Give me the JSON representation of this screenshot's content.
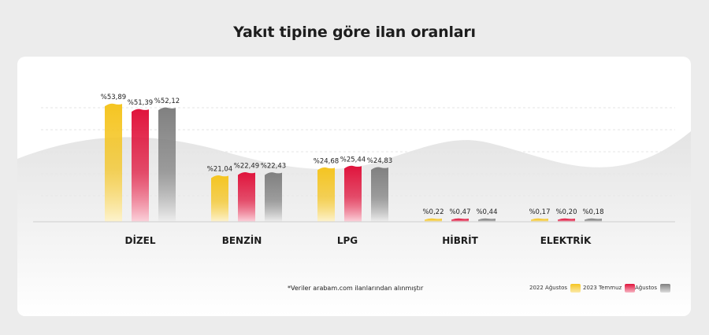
{
  "page": {
    "title": "Yakıt tipine göre ilan oranları",
    "footnote": "*Veriler arabam.com ilanlarından alınmıştır"
  },
  "colors": {
    "background": "#ececec",
    "card": "#ffffff",
    "series": [
      "#f5c521",
      "#e0143c",
      "#808080"
    ]
  },
  "chart_data": {
    "type": "bar",
    "title": "Yakıt tipine göre ilan oranları",
    "categories": [
      "DİZEL",
      "BENZİN",
      "LPG",
      "HİBRİT",
      "ELEKTRİK"
    ],
    "series": [
      {
        "name": "2022 Ağustos",
        "values": [
          53.89,
          21.04,
          24.68,
          0.22,
          0.17
        ]
      },
      {
        "name": "2023 Temmuz",
        "values": [
          51.39,
          22.49,
          25.44,
          0.47,
          0.2
        ]
      },
      {
        "name": "Ağustos",
        "values": [
          52.12,
          22.43,
          24.83,
          0.44,
          0.18
        ]
      }
    ],
    "value_labels": [
      [
        "%53,89",
        "%21,04",
        "%24,68",
        "%0,22",
        "%0,17"
      ],
      [
        "%51,39",
        "%22,49",
        "%25,44",
        "%0,47",
        "%0,20"
      ],
      [
        "%52,12",
        "%22,43",
        "%24,83",
        "%0,44",
        "%0,18"
      ]
    ],
    "ylim": [
      0,
      60
    ],
    "grid": true,
    "legend_position": "bottom-right"
  }
}
